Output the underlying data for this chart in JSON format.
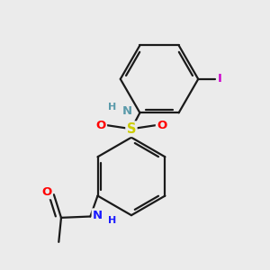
{
  "background_color": "#ebebeb",
  "bond_color": "#1a1a1a",
  "bond_width": 1.6,
  "atom_colors": {
    "N_sulfonamide": "#5a9aaa",
    "N_amide": "#1a1aff",
    "S": "#cccc00",
    "O": "#ff0000",
    "I": "#cc00cc",
    "H_sulfonamide": "#5a9aaa",
    "H_amide": "#1a1aff"
  },
  "figsize": [
    3.0,
    3.0
  ],
  "dpi": 100,
  "xlim": [
    0.0,
    10.0
  ],
  "ylim": [
    0.0,
    11.0
  ]
}
